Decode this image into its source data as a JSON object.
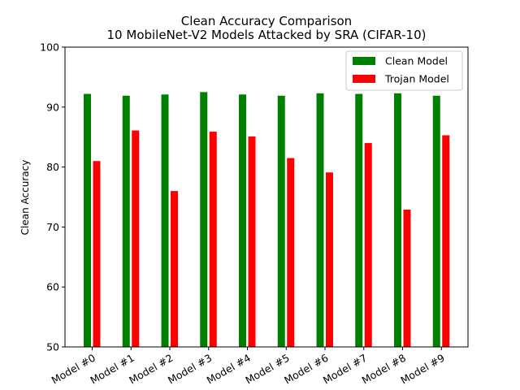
{
  "chart_data": {
    "type": "bar",
    "title": "Clean Accuracy Comparison",
    "subtitle": "10 MobileNet-V2 Models Attacked by SRA (CIFAR-10)",
    "xlabel": "",
    "ylabel": "Clean Accuracy",
    "ylim": [
      50,
      100
    ],
    "yticks": [
      50,
      60,
      70,
      80,
      90,
      100
    ],
    "grid": false,
    "legend_position": "top-right",
    "categories": [
      "Model #0",
      "Model #1",
      "Model #2",
      "Model #3",
      "Model #4",
      "Model #5",
      "Model #6",
      "Model #7",
      "Model #8",
      "Model #9"
    ],
    "series": [
      {
        "name": "Clean Model",
        "color": "#008000",
        "values": [
          92.2,
          91.9,
          92.1,
          92.5,
          92.1,
          91.9,
          92.3,
          92.2,
          92.3,
          91.9
        ]
      },
      {
        "name": "Trojan Model",
        "color": "#ff0000",
        "values": [
          81.0,
          86.1,
          76.0,
          85.9,
          85.1,
          81.5,
          79.1,
          84.0,
          72.9,
          85.3
        ]
      }
    ]
  }
}
